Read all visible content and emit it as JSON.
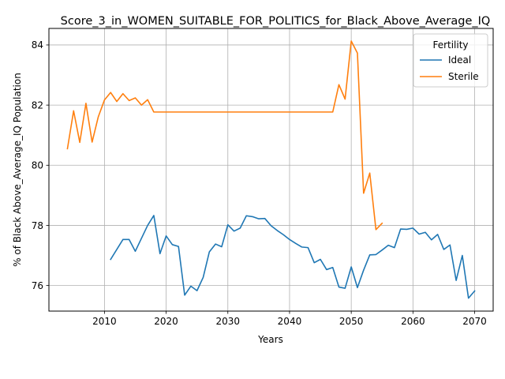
{
  "chart_data": {
    "type": "line",
    "title": "Score_3_in_WOMEN_SUITABLE_FOR_POLITICS_for_Black_Above_Average_IQ",
    "xlabel": "Years",
    "ylabel": "% of Black Above_Average_IQ Population",
    "xlim": [
      2001,
      2073
    ],
    "ylim": [
      75.15,
      84.55
    ],
    "xticks": [
      2010,
      2020,
      2030,
      2040,
      2050,
      2060,
      2070
    ],
    "yticks": [
      76,
      78,
      80,
      82,
      84
    ],
    "grid": true,
    "legend": {
      "title": "Fertility",
      "position": "top-right"
    },
    "series": [
      {
        "name": "Ideal",
        "color": "#1f77b4",
        "x": [
          2011,
          2013,
          2014,
          2015,
          2016,
          2017,
          2018,
          2019,
          2020,
          2021,
          2022,
          2023,
          2024,
          2025,
          2026,
          2027,
          2028,
          2029,
          2030,
          2031,
          2032,
          2033,
          2034,
          2035,
          2036,
          2037,
          2038,
          2039,
          2040,
          2041,
          2042,
          2043,
          2044,
          2045,
          2046,
          2047,
          2048,
          2049,
          2050,
          2051,
          2052,
          2053,
          2054,
          2055,
          2056,
          2057,
          2058,
          2059,
          2060,
          2061,
          2062,
          2063,
          2064,
          2065,
          2066,
          2067,
          2068,
          2069,
          2070
        ],
        "y": [
          76.87,
          77.53,
          77.53,
          77.14,
          77.57,
          78.0,
          78.33,
          77.06,
          77.65,
          77.36,
          77.3,
          75.68,
          75.98,
          75.83,
          76.27,
          77.12,
          77.38,
          77.29,
          78.02,
          77.81,
          77.91,
          78.32,
          78.29,
          78.22,
          78.23,
          77.99,
          77.83,
          77.69,
          77.53,
          77.4,
          77.28,
          77.26,
          76.76,
          76.87,
          76.53,
          76.6,
          75.95,
          75.91,
          76.62,
          75.93,
          76.51,
          77.02,
          77.03,
          77.18,
          77.34,
          77.26,
          77.88,
          77.87,
          77.91,
          77.71,
          77.77,
          77.52,
          77.7,
          77.2,
          77.35,
          76.17,
          77.0,
          75.58,
          75.82
        ]
      },
      {
        "name": "Sterile",
        "color": "#ff7f0e",
        "x": [
          2004,
          2005,
          2006,
          2007,
          2008,
          2009,
          2010,
          2011,
          2012,
          2013,
          2014,
          2015,
          2016,
          2017,
          2018,
          2019,
          2020,
          2030,
          2040,
          2047,
          2048,
          2049,
          2050,
          2051,
          2052,
          2053,
          2054,
          2055
        ],
        "y": [
          80.55,
          81.81,
          80.76,
          82.06,
          80.77,
          81.61,
          82.17,
          82.42,
          82.12,
          82.38,
          82.15,
          82.24,
          82.0,
          82.18,
          81.77,
          81.77,
          81.77,
          81.77,
          81.77,
          81.77,
          82.68,
          82.2,
          84.13,
          83.73,
          79.07,
          79.74,
          77.86,
          78.07
        ]
      }
    ]
  }
}
